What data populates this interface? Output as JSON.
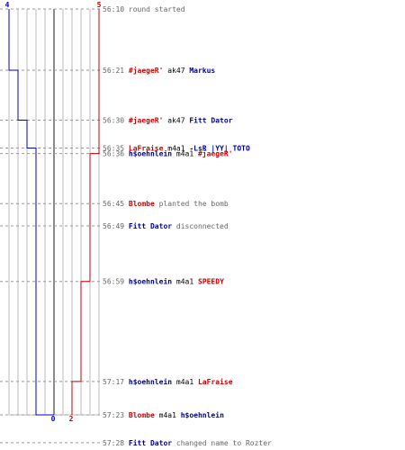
{
  "colors": {
    "team_a": "#0000cc",
    "team_b": "#cc0000",
    "grid": "#bbbbbb",
    "dash": "#999999",
    "text": "#000000",
    "muted": "#666666"
  },
  "scores": {
    "team_a_start": "4",
    "team_b_start": "5",
    "team_a_end": "0",
    "team_b_end": "2"
  },
  "events": [
    {
      "time": "56:10",
      "seconds": 0,
      "parts": [
        {
          "text": "round started",
          "style": "gray"
        }
      ]
    },
    {
      "time": "56:21",
      "seconds": 11,
      "parts": [
        {
          "text": "#jaegeR'",
          "style": "red"
        },
        {
          "text": " ak47 ",
          "style": "black"
        },
        {
          "text": "Markus",
          "style": "blue"
        }
      ]
    },
    {
      "time": "56:30",
      "seconds": 20,
      "parts": [
        {
          "text": "#jaegeR'",
          "style": "red"
        },
        {
          "text": " ak47 ",
          "style": "black"
        },
        {
          "text": "Fitt Dator",
          "style": "blue"
        }
      ]
    },
    {
      "time": "56:35",
      "seconds": 25,
      "parts": [
        {
          "text": "LaFraise",
          "style": "red"
        },
        {
          "text": " m4a1 ",
          "style": "black"
        },
        {
          "text": "-LsR |YY| TOTO",
          "style": "blue"
        }
      ]
    },
    {
      "time": "56:36",
      "seconds": 26,
      "parts": [
        {
          "text": "h$oehnlein",
          "style": "blue"
        },
        {
          "text": " m4a1 ",
          "style": "black"
        },
        {
          "text": "#jaegeR'",
          "style": "red"
        }
      ]
    },
    {
      "time": "56:45",
      "seconds": 35,
      "parts": [
        {
          "text": "Blombe",
          "style": "red"
        },
        {
          "text": " planted the bomb",
          "style": "gray"
        }
      ]
    },
    {
      "time": "56:49",
      "seconds": 39,
      "parts": [
        {
          "text": "Fitt Dator",
          "style": "blue"
        },
        {
          "text": " disconnected",
          "style": "gray"
        }
      ]
    },
    {
      "time": "56:59",
      "seconds": 49,
      "parts": [
        {
          "text": "h$oehnlein",
          "style": "blue"
        },
        {
          "text": " m4a1 ",
          "style": "black"
        },
        {
          "text": "SPEEDY",
          "style": "red"
        }
      ]
    },
    {
      "time": "57:17",
      "seconds": 67,
      "parts": [
        {
          "text": "h$oehnlein",
          "style": "blue"
        },
        {
          "text": " m4a1 ",
          "style": "black"
        },
        {
          "text": "LaFraise",
          "style": "red"
        }
      ]
    },
    {
      "time": "57:23",
      "seconds": 73,
      "parts": [
        {
          "text": "Blombe",
          "style": "red"
        },
        {
          "text": " m4a1 ",
          "style": "black"
        },
        {
          "text": "h$oehnlein",
          "style": "blue"
        }
      ]
    },
    {
      "time": "57:28",
      "seconds": 78,
      "parts": [
        {
          "text": "Fitt Dator",
          "style": "blue"
        },
        {
          "text": " changed name to Rozter",
          "style": "gray"
        }
      ]
    }
  ],
  "team_a_alive": [
    {
      "seconds": 0,
      "alive": 4
    },
    {
      "seconds": 11,
      "alive": 3
    },
    {
      "seconds": 20,
      "alive": 2
    },
    {
      "seconds": 25,
      "alive": 1
    },
    {
      "seconds": 73,
      "alive": 0
    }
  ],
  "team_b_alive": [
    {
      "seconds": 0,
      "alive": 5
    },
    {
      "seconds": 26,
      "alive": 4
    },
    {
      "seconds": 49,
      "alive": 3
    },
    {
      "seconds": 67,
      "alive": 2
    }
  ],
  "round_end_seconds": 73
}
